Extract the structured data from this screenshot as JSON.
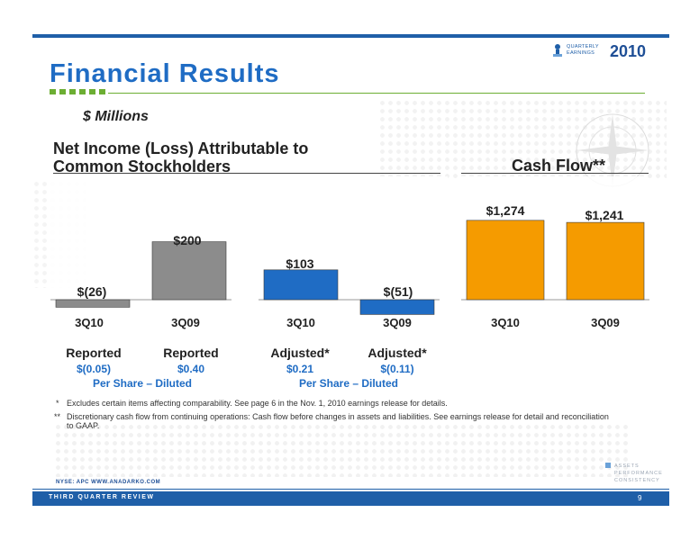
{
  "header": {
    "logo_line1": "QUARTERLY",
    "logo_line2": "EARNINGS",
    "logo_year": "2010",
    "title": "Financial Results",
    "units": "$ Millions"
  },
  "net_income": {
    "heading_line1": "Net Income (Loss) Attributable to",
    "heading_line2": "Common Stockholders",
    "per_share_caption": "Per Share – Diluted"
  },
  "cash_flow": {
    "heading": "Cash Flow**"
  },
  "chart_data": [
    {
      "type": "bar",
      "title": "Net Income (Loss) Attributable to Common Stockholders",
      "categories": [
        "3Q10",
        "3Q09"
      ],
      "basis": "Reported",
      "values": [
        -26,
        200
      ],
      "value_labels": [
        "$(26)",
        "$200"
      ],
      "per_share": [
        "$(0.05)",
        "$0.40"
      ],
      "color": "#8c8c8c",
      "ylim": [
        -60,
        300
      ]
    },
    {
      "type": "bar",
      "title": "Net Income (Loss) Attributable to Common Stockholders",
      "categories": [
        "3Q10",
        "3Q09"
      ],
      "basis": "Adjusted*",
      "values": [
        103,
        -51
      ],
      "value_labels": [
        "$103",
        "$(51)"
      ],
      "per_share": [
        "$0.21",
        "$(0.11)"
      ],
      "color": "#1f6cc4",
      "ylim": [
        -60,
        300
      ]
    },
    {
      "type": "bar",
      "title": "Cash Flow**",
      "categories": [
        "3Q10",
        "3Q09"
      ],
      "values": [
        1274,
        1241
      ],
      "value_labels": [
        "$1,274",
        "$1,241"
      ],
      "color": "#f59b00",
      "ylim": [
        0,
        1400
      ]
    }
  ],
  "footnotes": [
    {
      "mark": "*",
      "text": "Excludes certain items affecting comparability. See page 6 in the Nov. 1, 2010 earnings release for details."
    },
    {
      "mark": "**",
      "text": "Discretionary cash flow from continuing operations: Cash flow before changes in assets and liabilities. See earnings release for detail and reconciliation to GAAP."
    }
  ],
  "footer": {
    "ticker": "NYSE: APC    WWW.ANADARKO.COM",
    "section": "THIRD QUARTER REVIEW",
    "page": "9",
    "tagline": [
      "ASSETS",
      "PERFORMANCE",
      "CONSISTENCY"
    ]
  },
  "colors": {
    "brand_blue": "#1f6cc4",
    "brand_green": "#6cae33",
    "footer_blue": "#1f5fa8"
  }
}
